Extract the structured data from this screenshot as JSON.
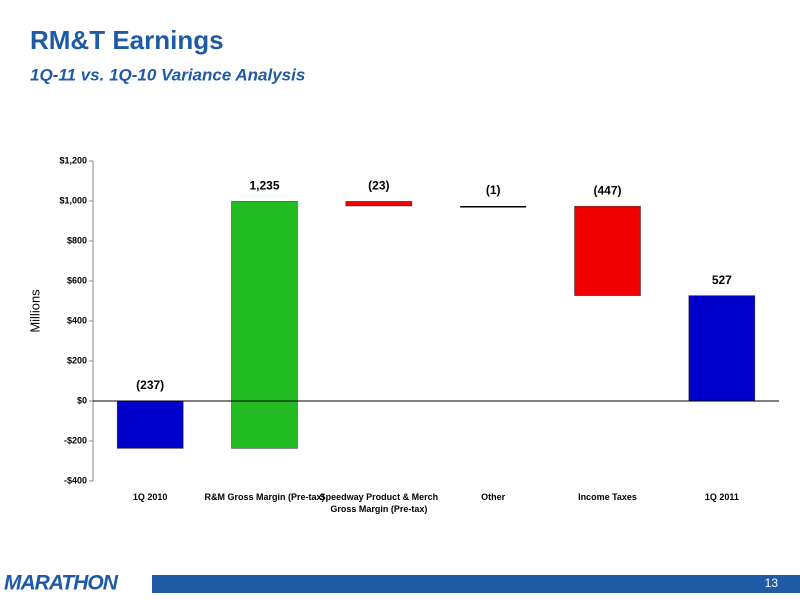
{
  "chart_data": {
    "type": "waterfall",
    "title": "RM&T Earnings",
    "subtitle": "1Q-11 vs. 1Q-10 Variance Analysis",
    "y_label": "Millions",
    "categories": [
      "1Q 2010",
      "R&M Gross Margin (Pre-tax)",
      "Speedway Product & Merch Gross Margin (Pre-tax)",
      "Other",
      "Income Taxes",
      "1Q 2011"
    ],
    "values": [
      -237,
      1235,
      -23,
      -1,
      -447,
      527
    ],
    "value_labels": [
      "(237)",
      "1,235",
      "(23)",
      "(1)",
      "(447)",
      "527"
    ],
    "measure": [
      "absolute",
      "relative",
      "relative",
      "relative",
      "relative",
      "total"
    ],
    "colors": [
      "#0000cc",
      "#22bb22",
      "#ee0000",
      "#000000",
      "#ee0000",
      "#0000cc"
    ],
    "ylim": [
      -400,
      1200
    ],
    "yticks": [
      {
        "value": -400,
        "label": "-$400"
      },
      {
        "value": -200,
        "label": "-$200"
      },
      {
        "value": 0,
        "label": "$0"
      },
      {
        "value": 200,
        "label": "$200"
      },
      {
        "value": 400,
        "label": "$400"
      },
      {
        "value": 600,
        "label": "$600"
      },
      {
        "value": 800,
        "label": "$800"
      },
      {
        "value": 1000,
        "label": "$1,000"
      },
      {
        "value": 1200,
        "label": "$1,200"
      }
    ]
  },
  "footer": {
    "logo": "MARATHON",
    "page": "13"
  }
}
